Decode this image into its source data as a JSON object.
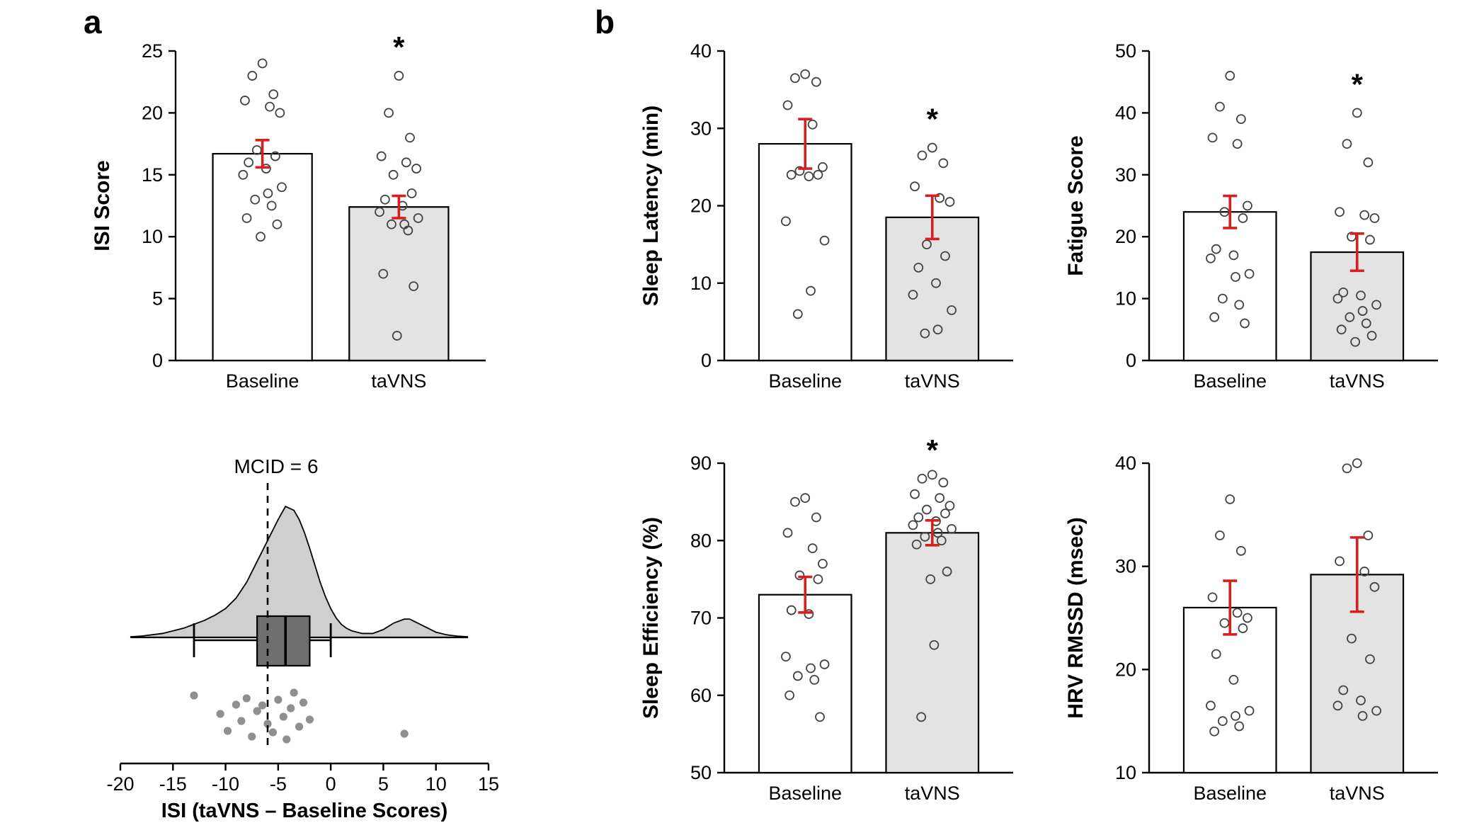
{
  "panels": {
    "a": "a",
    "b": "b"
  },
  "colors": {
    "baseline_fill": "#ffffff",
    "tavns_fill": "#e3e3e3",
    "bar_stroke": "#000000",
    "error_bar": "#d81f1f",
    "point_stroke": "#444444",
    "density_fill": "#cfcfcf",
    "box_fill": "#6f6f6f",
    "scatter_fill": "#8f8f8f",
    "axis": "#000000"
  },
  "chart_data": [
    {
      "id": "isi",
      "type": "bar",
      "title": "",
      "ylabel": "ISI Score",
      "ylim": [
        0,
        25
      ],
      "yticks": [
        0,
        5,
        10,
        15,
        20,
        25
      ],
      "categories": [
        "Baseline",
        "taVNS"
      ],
      "bars": [
        {
          "label": "Baseline",
          "mean": 16.7,
          "err": 1.1,
          "asterisk": false,
          "points": [
            24,
            23,
            21.5,
            21,
            20.5,
            20,
            17,
            16.5,
            16,
            15.5,
            15,
            14,
            13.5,
            13,
            12.5,
            11.5,
            11,
            10
          ]
        },
        {
          "label": "taVNS",
          "mean": 12.4,
          "err": 0.9,
          "asterisk": true,
          "points": [
            23,
            20,
            18,
            16.5,
            16,
            15.5,
            15,
            13.5,
            13,
            12.5,
            12,
            11.5,
            11,
            11,
            10.5,
            7,
            6,
            2
          ]
        }
      ]
    },
    {
      "id": "isi-diff",
      "type": "raincloud",
      "xlabel": "ISI (taVNS – Baseline Scores)",
      "xlim": [
        -20,
        15
      ],
      "xticks": [
        -20,
        -15,
        -10,
        -5,
        0,
        5,
        10,
        15
      ],
      "mcid_line": {
        "x": -6,
        "label": "MCID = 6"
      },
      "box": {
        "whisker_low": -13,
        "q1": -7,
        "median": -4.3,
        "q3": -2,
        "whisker_high": 0
      },
      "density": [
        [
          -19,
          0.005
        ],
        [
          -18,
          0.01
        ],
        [
          -17,
          0.02
        ],
        [
          -16,
          0.03
        ],
        [
          -15,
          0.05
        ],
        [
          -14,
          0.07
        ],
        [
          -13,
          0.1
        ],
        [
          -12,
          0.13
        ],
        [
          -11,
          0.17
        ],
        [
          -10,
          0.22
        ],
        [
          -9,
          0.3
        ],
        [
          -8,
          0.42
        ],
        [
          -7,
          0.58
        ],
        [
          -6,
          0.74
        ],
        [
          -5,
          0.9
        ],
        [
          -4.3,
          1.0
        ],
        [
          -3.5,
          0.97
        ],
        [
          -3,
          0.9
        ],
        [
          -2.5,
          0.8
        ],
        [
          -2,
          0.68
        ],
        [
          -1.5,
          0.55
        ],
        [
          -1,
          0.42
        ],
        [
          -0.5,
          0.31
        ],
        [
          0,
          0.22
        ],
        [
          0.5,
          0.15
        ],
        [
          1,
          0.1
        ],
        [
          1.5,
          0.07
        ],
        [
          2,
          0.05
        ],
        [
          3,
          0.03
        ],
        [
          4,
          0.03
        ],
        [
          5,
          0.06
        ],
        [
          6,
          0.11
        ],
        [
          7,
          0.14
        ],
        [
          7.5,
          0.14
        ],
        [
          8,
          0.12
        ],
        [
          9,
          0.08
        ],
        [
          10,
          0.04
        ],
        [
          11,
          0.02
        ],
        [
          12,
          0.01
        ],
        [
          13,
          0.005
        ]
      ],
      "points": [
        -13,
        -10.5,
        -9.8,
        -9,
        -8.5,
        -8,
        -7.5,
        -7,
        -6.5,
        -6,
        -5.5,
        -5,
        -4.5,
        -4.2,
        -3.8,
        -3.5,
        -3,
        -2.6,
        -2,
        7
      ]
    },
    {
      "id": "sleep-latency",
      "type": "bar",
      "ylabel": "Sleep Latency (min)",
      "ylim": [
        0,
        40
      ],
      "yticks": [
        0,
        10,
        20,
        30,
        40
      ],
      "categories": [
        "Baseline",
        "taVNS"
      ],
      "bars": [
        {
          "label": "Baseline",
          "mean": 28,
          "err": 3.2,
          "asterisk": false,
          "points": [
            37,
            36.5,
            36,
            33,
            30.5,
            25,
            24.5,
            24,
            24,
            23.8,
            18,
            15.5,
            9,
            6
          ]
        },
        {
          "label": "taVNS",
          "mean": 18.5,
          "err": 2.8,
          "asterisk": true,
          "points": [
            27.5,
            26.5,
            25.5,
            22.5,
            21,
            20.5,
            15,
            13.5,
            12,
            10,
            8.5,
            6.5,
            4,
            3.5
          ]
        }
      ]
    },
    {
      "id": "fatigue",
      "type": "bar",
      "ylabel": "Fatigue Score",
      "ylim": [
        0,
        50
      ],
      "yticks": [
        0,
        10,
        20,
        30,
        40,
        50
      ],
      "categories": [
        "Baseline",
        "taVNS"
      ],
      "bars": [
        {
          "label": "Baseline",
          "mean": 24,
          "err": 2.6,
          "asterisk": false,
          "points": [
            46,
            41,
            39,
            36,
            35,
            25,
            24,
            23,
            18,
            17,
            16.5,
            14,
            13.5,
            10,
            9,
            7,
            6
          ]
        },
        {
          "label": "taVNS",
          "mean": 17.5,
          "err": 3.0,
          "asterisk": true,
          "points": [
            40,
            35,
            32,
            24,
            23.5,
            23,
            20,
            19.5,
            11,
            10.5,
            10,
            9,
            8,
            7,
            6,
            5,
            4,
            3
          ]
        }
      ]
    },
    {
      "id": "sleep-efficiency",
      "type": "bar",
      "ylabel": "Sleep Efficiency (%)",
      "ylim": [
        50,
        90
      ],
      "yticks": [
        50,
        60,
        70,
        80,
        90
      ],
      "categories": [
        "Baseline",
        "taVNS"
      ],
      "bars": [
        {
          "label": "Baseline",
          "mean": 73,
          "err": 2.3,
          "asterisk": false,
          "points": [
            85.5,
            85,
            83,
            81,
            79,
            77,
            75.5,
            75,
            71,
            70.5,
            65,
            64,
            63.5,
            62.5,
            62,
            60,
            57.2
          ]
        },
        {
          "label": "taVNS",
          "mean": 81,
          "err": 1.6,
          "asterisk": true,
          "points": [
            88.5,
            88,
            87.5,
            86,
            85.5,
            84.5,
            84,
            83.5,
            83,
            82.5,
            82,
            81.5,
            81,
            80.5,
            80,
            79.5,
            76,
            75,
            66.5,
            57.2
          ]
        }
      ]
    },
    {
      "id": "hrv",
      "type": "bar",
      "ylabel": "HRV RMSSD (msec)",
      "ylim": [
        10,
        40
      ],
      "yticks": [
        10,
        20,
        30,
        40
      ],
      "categories": [
        "Baseline",
        "taVNS"
      ],
      "bars": [
        {
          "label": "Baseline",
          "mean": 26,
          "err": 2.6,
          "asterisk": false,
          "points": [
            36.5,
            33,
            31.5,
            27,
            25.5,
            25,
            24.5,
            24,
            21.5,
            19,
            16.5,
            16,
            15.5,
            15,
            14.5,
            14
          ]
        },
        {
          "label": "taVNS",
          "mean": 29.2,
          "err": 3.6,
          "asterisk": false,
          "points": [
            40,
            39.5,
            33,
            30.5,
            29.5,
            28,
            23,
            21,
            18,
            17,
            16.5,
            16,
            15.5
          ]
        }
      ]
    }
  ]
}
